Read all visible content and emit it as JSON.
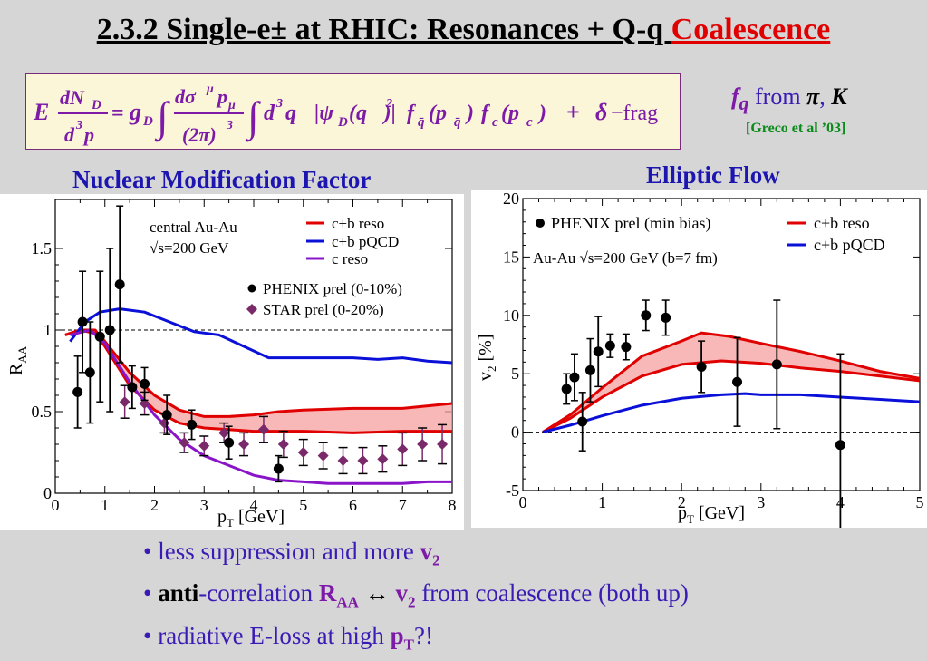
{
  "title": {
    "main": "2.3.2 Single-e± at RHIC: Resonances + Q-q ",
    "highlight": "Coalescence"
  },
  "formula": {
    "lhs_E": "E",
    "lhs_num": "dN",
    "lhs_num_sub": "D",
    "lhs_den": "d",
    "lhs_den_sup": "3",
    "lhs_den_p": "p",
    "eq": "=",
    "g": "g",
    "g_sub": "D",
    "int_num": "dσ",
    "int_num_sup": "μ",
    "int_num_p": "p",
    "int_num_psub": "μ",
    "int_den": "(2π)",
    "int_den_sup": "3",
    "d3q": "d",
    "d3q_sup": "3",
    "d3q_q": "q",
    "psi": "|ψ",
    "psi_sub": "D",
    "psi_arg": "(q⃗)|",
    "psi_sup": "2",
    "fqbar": "f",
    "fqbar_sub": "q̄",
    "fqbar_arg": "(p⃗",
    "fqbar_arg_sub": "q̄",
    "fqbar_close": ")",
    "fc": "f",
    "fc_sub": "c",
    "fc_arg": "(p⃗",
    "fc_arg_sub": "c",
    "fc_close": ")",
    "plus": "+",
    "delta": "δ",
    "frag": "−frag"
  },
  "fq": {
    "f": "f",
    "f_sub": "q",
    "from": " from ",
    "pi": "π",
    "comma": ", ",
    "K": "K"
  },
  "greco": "[Greco et al ’03]",
  "left_heading": "Nuclear Modification Factor",
  "right_heading": "Elliptic Flow",
  "colors": {
    "red": "#e00000",
    "blue": "#0a10d8",
    "purple": "#8a14c8",
    "star": "#7a2a6a",
    "band": "#f5a0a0"
  },
  "raa_chart": {
    "chart_data": {
      "type": "line",
      "xlim": [
        0,
        8
      ],
      "ylim": [
        0,
        1.8
      ],
      "x_ticks": [
        "0",
        "1",
        "2",
        "3",
        "4",
        "5",
        "6",
        "7",
        "8"
      ],
      "y_ticks": [
        "0",
        "0.5",
        "1",
        "1.5"
      ],
      "xlabel": "p",
      "xlabel_sub": "T",
      "xlabel_unit": " [GeV]",
      "ylabel": "R",
      "ylabel_sub": "AA",
      "annotation_1": "central Au-Au",
      "annotation_2": "√s=200 GeV",
      "legend": {
        "l1": "c+b reso",
        "l2": "c+b pQCD",
        "l3": "c reso",
        "l4": "PHENIX prel (0-10%)",
        "l5": "STAR prel (0-20%)"
      },
      "reference_line": 1.0,
      "series": [
        {
          "name": "c+b reso",
          "color": "#e00000",
          "band": true,
          "upper": [
            [
              0.2,
              0.97
            ],
            [
              0.5,
              1.0
            ],
            [
              0.8,
              1.0
            ],
            [
              1.0,
              0.93
            ],
            [
              1.5,
              0.74
            ],
            [
              2.0,
              0.6
            ],
            [
              2.5,
              0.51
            ],
            [
              3.0,
              0.47
            ],
            [
              3.5,
              0.47
            ],
            [
              4.0,
              0.48
            ],
            [
              4.5,
              0.5
            ],
            [
              5.0,
              0.51
            ],
            [
              6.0,
              0.52
            ],
            [
              7.0,
              0.52
            ],
            [
              8.0,
              0.55
            ]
          ],
          "lower": [
            [
              0.2,
              0.97
            ],
            [
              0.5,
              1.0
            ],
            [
              0.8,
              0.98
            ],
            [
              1.0,
              0.9
            ],
            [
              1.5,
              0.66
            ],
            [
              2.0,
              0.51
            ],
            [
              2.5,
              0.43
            ],
            [
              3.0,
              0.4
            ],
            [
              3.5,
              0.39
            ],
            [
              4.0,
              0.38
            ],
            [
              4.5,
              0.38
            ],
            [
              5.0,
              0.38
            ],
            [
              6.0,
              0.37
            ],
            [
              7.0,
              0.38
            ],
            [
              8.0,
              0.38
            ]
          ]
        },
        {
          "name": "c+b pQCD",
          "color": "#0a10d8",
          "values": [
            [
              0.3,
              0.93
            ],
            [
              0.6,
              1.05
            ],
            [
              0.9,
              1.11
            ],
            [
              1.3,
              1.13
            ],
            [
              1.8,
              1.11
            ],
            [
              2.3,
              1.05
            ],
            [
              2.8,
              0.99
            ],
            [
              3.3,
              0.97
            ],
            [
              3.8,
              0.9
            ],
            [
              4.3,
              0.83
            ],
            [
              5.0,
              0.83
            ],
            [
              5.5,
              0.83
            ],
            [
              6.0,
              0.83
            ],
            [
              6.5,
              0.82
            ],
            [
              7.0,
              0.83
            ],
            [
              7.5,
              0.81
            ],
            [
              8.0,
              0.8
            ]
          ]
        },
        {
          "name": "c reso",
          "color": "#8a14c8",
          "values": [
            [
              0.3,
              0.97
            ],
            [
              0.7,
              1.0
            ],
            [
              1.0,
              0.92
            ],
            [
              1.5,
              0.68
            ],
            [
              2.0,
              0.48
            ],
            [
              2.5,
              0.33
            ],
            [
              3.0,
              0.23
            ],
            [
              3.5,
              0.17
            ],
            [
              4.0,
              0.11
            ],
            [
              4.5,
              0.08
            ],
            [
              5.0,
              0.07
            ],
            [
              5.5,
              0.06
            ],
            [
              6.0,
              0.06
            ],
            [
              7.0,
              0.06
            ],
            [
              7.5,
              0.07
            ],
            [
              8.0,
              0.07
            ]
          ]
        }
      ],
      "phenix": [
        {
          "x": 0.45,
          "y": 0.62,
          "err": 0.22
        },
        {
          "x": 0.55,
          "y": 1.05,
          "err": 0.31
        },
        {
          "x": 0.7,
          "y": 0.74,
          "err": 0.31
        },
        {
          "x": 0.9,
          "y": 0.96,
          "err": 0.4
        },
        {
          "x": 1.1,
          "y": 1.0,
          "err": 0.5
        },
        {
          "x": 1.3,
          "y": 1.28,
          "err": 0.48
        },
        {
          "x": 1.55,
          "y": 0.65,
          "err": 0.13
        },
        {
          "x": 1.8,
          "y": 0.67,
          "err": 0.1
        },
        {
          "x": 2.25,
          "y": 0.48,
          "err": 0.12
        },
        {
          "x": 2.75,
          "y": 0.42,
          "err": 0.09
        },
        {
          "x": 3.5,
          "y": 0.31,
          "err": 0.1
        },
        {
          "x": 4.5,
          "y": 0.15,
          "err": 0.08
        }
      ],
      "star": [
        {
          "x": 1.4,
          "y": 0.56,
          "err": 0.1
        },
        {
          "x": 1.8,
          "y": 0.55,
          "err": 0.07
        },
        {
          "x": 2.2,
          "y": 0.43,
          "err": 0.06
        },
        {
          "x": 2.6,
          "y": 0.31,
          "err": 0.06
        },
        {
          "x": 3.0,
          "y": 0.29,
          "err": 0.06
        },
        {
          "x": 3.4,
          "y": 0.37,
          "err": 0.06
        },
        {
          "x": 3.8,
          "y": 0.3,
          "err": 0.07
        },
        {
          "x": 4.2,
          "y": 0.39,
          "err": 0.08
        },
        {
          "x": 4.6,
          "y": 0.3,
          "err": 0.08
        },
        {
          "x": 5.0,
          "y": 0.25,
          "err": 0.08
        },
        {
          "x": 5.4,
          "y": 0.23,
          "err": 0.08
        },
        {
          "x": 5.8,
          "y": 0.2,
          "err": 0.08
        },
        {
          "x": 6.2,
          "y": 0.2,
          "err": 0.08
        },
        {
          "x": 6.6,
          "y": 0.21,
          "err": 0.08
        },
        {
          "x": 7.0,
          "y": 0.27,
          "err": 0.1
        },
        {
          "x": 7.4,
          "y": 0.3,
          "err": 0.1
        },
        {
          "x": 7.8,
          "y": 0.3,
          "err": 0.12
        }
      ]
    }
  },
  "v2_chart": {
    "chart_data": {
      "type": "line",
      "xlim": [
        0,
        5
      ],
      "ylim": [
        -5,
        20
      ],
      "x_ticks": [
        "0",
        "1",
        "2",
        "3",
        "4",
        "5"
      ],
      "y_ticks": [
        "-5",
        "0",
        "5",
        "10",
        "15",
        "20"
      ],
      "xlabel": "p",
      "xlabel_sub": "T",
      "xlabel_unit": " [GeV]",
      "ylabel": "v",
      "ylabel_sub": "2",
      "ylabel_unit": " [%]",
      "annotation_1": "Au-Au √s=200 GeV (b=7 fm)",
      "legend": {
        "l1": "PHENIX prel (min bias)",
        "l2": "c+b reso",
        "l3": "c+b pQCD"
      },
      "reference_line": 0,
      "series": [
        {
          "name": "c+b reso",
          "color": "#e00000",
          "band": true,
          "upper": [
            [
              0.25,
              0.0
            ],
            [
              0.6,
              1.5
            ],
            [
              1.0,
              3.8
            ],
            [
              1.5,
              6.5
            ],
            [
              2.0,
              7.8
            ],
            [
              2.25,
              8.5
            ],
            [
              2.6,
              8.2
            ],
            [
              3.0,
              7.6
            ],
            [
              3.5,
              6.9
            ],
            [
              4.0,
              6.1
            ],
            [
              4.5,
              5.2
            ],
            [
              5.0,
              4.6
            ]
          ],
          "lower": [
            [
              0.25,
              0.0
            ],
            [
              0.6,
              1.2
            ],
            [
              1.0,
              3.0
            ],
            [
              1.5,
              4.8
            ],
            [
              2.0,
              5.8
            ],
            [
              2.5,
              6.1
            ],
            [
              3.0,
              5.9
            ],
            [
              3.5,
              5.5
            ],
            [
              4.0,
              5.2
            ],
            [
              4.5,
              4.8
            ],
            [
              5.0,
              4.4
            ]
          ]
        },
        {
          "name": "c+b pQCD",
          "color": "#0a10d8",
          "values": [
            [
              0.25,
              0.0
            ],
            [
              0.6,
              0.6
            ],
            [
              1.0,
              1.4
            ],
            [
              1.5,
              2.3
            ],
            [
              2.0,
              2.9
            ],
            [
              2.5,
              3.2
            ],
            [
              2.8,
              3.3
            ],
            [
              3.0,
              3.2
            ],
            [
              3.5,
              3.2
            ],
            [
              4.0,
              3.0
            ],
            [
              4.5,
              2.8
            ],
            [
              5.0,
              2.6
            ]
          ]
        }
      ],
      "phenix": [
        {
          "x": 0.55,
          "y": 3.7,
          "err": 1.3
        },
        {
          "x": 0.65,
          "y": 4.7,
          "err": 2.0
        },
        {
          "x": 0.75,
          "y": 0.9,
          "err": 2.5
        },
        {
          "x": 0.85,
          "y": 5.3,
          "err": 2.7
        },
        {
          "x": 0.95,
          "y": 6.9,
          "err": 3.0
        },
        {
          "x": 1.1,
          "y": 7.4,
          "err": 1.0
        },
        {
          "x": 1.3,
          "y": 7.3,
          "err": 1.1
        },
        {
          "x": 1.55,
          "y": 10.0,
          "err": 1.3
        },
        {
          "x": 1.8,
          "y": 9.8,
          "err": 1.5
        },
        {
          "x": 2.25,
          "y": 5.6,
          "err": 2.2
        },
        {
          "x": 2.7,
          "y": 4.3,
          "err": 3.8
        },
        {
          "x": 3.2,
          "y": 5.8,
          "err": 5.5
        },
        {
          "x": 4.0,
          "y": -1.1,
          "err": 7.8
        }
      ]
    }
  },
  "bullets": {
    "b1_a": "• less suppression and more ",
    "b1_v": "v",
    "b1_vsub": "2",
    "b2_dot": "• ",
    "b2_anti": "anti",
    "b2_rest": "-correlation ",
    "b2_R": "R",
    "b2_Rsub": "AA",
    "b2_arrow": " ↔  ",
    "b2_v": "v",
    "b2_vsub": "2",
    "b2_end": " from coalescence (both up)",
    "b3_a": "• radiative E-loss at high ",
    "b3_p": "p",
    "b3_psub": "T",
    "b3_end": "?!"
  }
}
